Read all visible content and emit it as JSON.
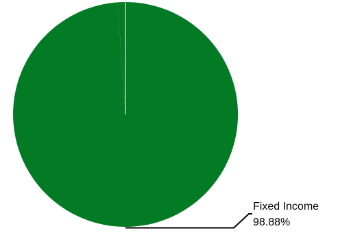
{
  "chart_data": {
    "type": "pie",
    "title": "",
    "legend": "none",
    "start_angle_deg": 0,
    "direction": "clockwise",
    "slices": [
      {
        "name": "Fixed Income",
        "value_label": "98.88%",
        "value": 98.88,
        "color": "#027b24",
        "labeled": true
      },
      {
        "name": "",
        "value_label": "",
        "value": 1.12,
        "color": "#027b24",
        "labeled": false
      }
    ],
    "separator_color": "#ffffff",
    "leader_line_color": "#000000"
  }
}
